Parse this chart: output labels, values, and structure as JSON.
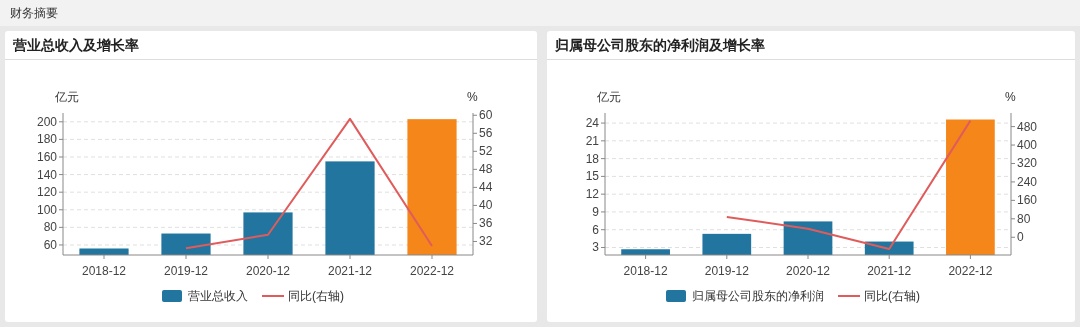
{
  "chart_data": [
    {
      "type": "other",
      "title": "财务摘要"
    },
    {
      "type": "bar",
      "title": "营业总收入及增长率",
      "ylabel": "亿元",
      "y2label": "%",
      "categories": [
        "2018-12",
        "2019-12",
        "2020-12",
        "2021-12",
        "2022-12"
      ],
      "series": [
        {
          "name": "营业总收入",
          "type": "bar",
          "color": "#21759f",
          "colors": [
            "#21759f",
            "#21759f",
            "#21759f",
            "#21759f",
            "#f5861a"
          ],
          "values": [
            56,
            73,
            97,
            155,
            203
          ]
        },
        {
          "name": "同比(右轴)",
          "type": "line",
          "axis": "y2",
          "color": "#e05c5c",
          "values": [
            null,
            30.5,
            33.5,
            59.2,
            31.0
          ]
        }
      ],
      "ylim": [
        48.6,
        210
      ],
      "yticks": [
        60,
        80,
        100,
        120,
        140,
        160,
        180,
        200
      ],
      "y2lim": [
        29,
        60.5
      ],
      "y2ticks": [
        32,
        36,
        40,
        44,
        48,
        52,
        56,
        60
      ],
      "grid": "y",
      "legend": "bottom"
    },
    {
      "type": "bar",
      "title": "归属母公司股东的净利润及增长率",
      "ylabel": "亿元",
      "y2label": "%",
      "categories": [
        "2018-12",
        "2019-12",
        "2020-12",
        "2021-12",
        "2022-12"
      ],
      "series": [
        {
          "name": "归属母公司股东的净利润",
          "type": "bar",
          "color": "#21759f",
          "colors": [
            "#21759f",
            "#21759f",
            "#21759f",
            "#21759f",
            "#f5861a"
          ],
          "values": [
            2.7,
            5.3,
            7.4,
            4.0,
            24.6
          ]
        },
        {
          "name": "同比(右轴)",
          "type": "line",
          "axis": "y2",
          "color": "#e05c5c",
          "values": [
            null,
            88,
            37,
            -51,
            506
          ]
        }
      ],
      "ylim": [
        1.73,
        25.7
      ],
      "yticks": [
        3,
        6,
        9,
        12,
        15,
        18,
        21,
        24
      ],
      "y2lim": [
        -77,
        539
      ],
      "y2ticks": [
        0,
        80,
        160,
        240,
        320,
        400,
        480
      ],
      "grid": "y",
      "legend": "bottom"
    }
  ]
}
